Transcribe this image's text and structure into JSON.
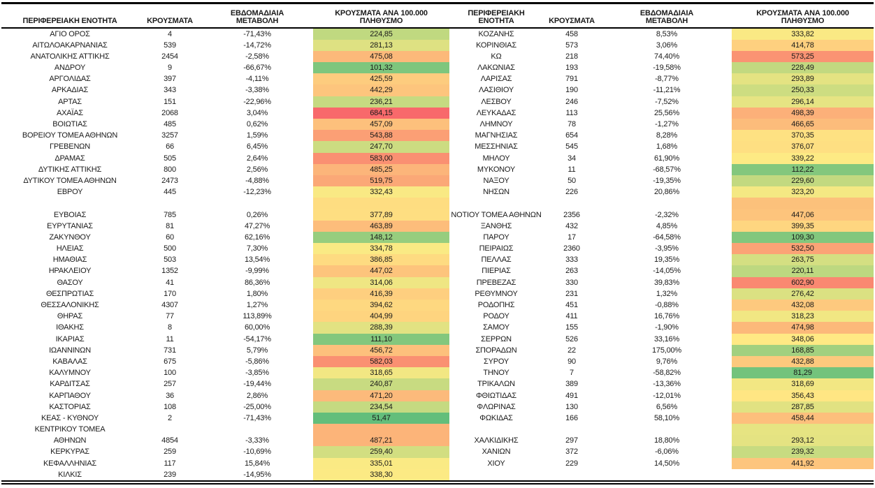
{
  "chart_data": {
    "type": "table",
    "title": "",
    "decimal_separator": ",",
    "color_scale": {
      "description": "3-color scale on per-100k column: green low, yellow mid, red high",
      "min_value": 51.47,
      "mid_value": 343.64,
      "max_value": 684.15,
      "min_color": "#63BE7B",
      "mid_color": "#FFEB84",
      "max_color": "#F8696B"
    },
    "text_color": "#1a1a1a",
    "border_color": "#000000",
    "tables": [
      {
        "header_lines": [
          [
            "ΠΕΡΙΦΕΡΕΙΑΚΗ ΕΝΟΤΗΤΑ"
          ],
          [
            "ΚΡΟΥΣΜΑΤΑ"
          ],
          [
            "ΕΒΔΟΜΑΔΙΑΙΑ",
            "ΜΕΤΑΒΟΛΗ"
          ],
          [
            "ΚΡΟΥΣΜΑΤΑ ΑΝΑ 100.000",
            "ΠΛΗΘΥΣΜΟ"
          ]
        ],
        "rows": [
          {
            "region": "ΑΓΙΟ ΟΡΟΣ",
            "cases": "4",
            "change": "-71,43%",
            "per_100k": "224,85"
          },
          {
            "region": "ΑΙΤΩΛΟΑΚΑΡΝΑΝΙΑΣ",
            "cases": "539",
            "change": "-14,72%",
            "per_100k": "281,13"
          },
          {
            "region": "ΑΝΑΤΟΛΙΚΗΣ ΑΤΤΙΚΗΣ",
            "cases": "2454",
            "change": "-2,58%",
            "per_100k": "475,08"
          },
          {
            "region": "ΑΝΔΡΟΥ",
            "cases": "9",
            "change": "-66,67%",
            "per_100k": "101,32"
          },
          {
            "region": "ΑΡΓΟΛΙΔΑΣ",
            "cases": "397",
            "change": "-4,11%",
            "per_100k": "425,59"
          },
          {
            "region": "ΑΡΚΑΔΙΑΣ",
            "cases": "343",
            "change": "-3,38%",
            "per_100k": "442,29"
          },
          {
            "region": "ΑΡΤΑΣ",
            "cases": "151",
            "change": "-22,96%",
            "per_100k": "236,21"
          },
          {
            "region": "ΑΧΑΪΑΣ",
            "cases": "2068",
            "change": "3,04%",
            "per_100k": "684,15"
          },
          {
            "region": "ΒΟΙΩΤΙΑΣ",
            "cases": "485",
            "change": "0,62%",
            "per_100k": "457,09"
          },
          {
            "region": "ΒΟΡΕΙΟΥ ΤΟΜΕΑ ΑΘΗΝΩΝ",
            "cases": "3257",
            "change": "1,59%",
            "per_100k": "543,88"
          },
          {
            "region": "ΓΡΕΒΕΝΩΝ",
            "cases": "66",
            "change": "6,45%",
            "per_100k": "247,70"
          },
          {
            "region": "ΔΡΑΜΑΣ",
            "cases": "505",
            "change": "2,64%",
            "per_100k": "583,00"
          },
          {
            "region": "ΔΥΤΙΚΗΣ ΑΤΤΙΚΗΣ",
            "cases": "800",
            "change": "2,56%",
            "per_100k": "485,25"
          },
          {
            "region": "ΔΥΤΙΚΟΥ ΤΟΜΕΑ ΑΘΗΝΩΝ",
            "cases": "2473",
            "change": "-4,88%",
            "per_100k": "519,75"
          },
          {
            "region": "ΕΒΡΟΥ",
            "cases": "445",
            "change": "-12,23%",
            "per_100k": "332,43"
          },
          {
            "region": "",
            "cases": "",
            "change": "",
            "per_100k": "",
            "fill": "#FEDD81"
          },
          {
            "region": "ΕΥΒΟΙΑΣ",
            "cases": "785",
            "change": "0,26%",
            "per_100k": "377,89"
          },
          {
            "region": "ΕΥΡΥΤΑΝΙΑΣ",
            "cases": "81",
            "change": "47,27%",
            "per_100k": "463,89"
          },
          {
            "region": "ΖΑΚΥΝΘΟΥ",
            "cases": "60",
            "change": "62,16%",
            "per_100k": "148,12"
          },
          {
            "region": "ΗΛΕΙΑΣ",
            "cases": "500",
            "change": "7,30%",
            "per_100k": "334,78"
          },
          {
            "region": "ΗΜΑΘΙΑΣ",
            "cases": "503",
            "change": "13,54%",
            "per_100k": "386,85"
          },
          {
            "region": "ΗΡΑΚΛΕΙΟΥ",
            "cases": "1352",
            "change": "-9,99%",
            "per_100k": "447,02"
          },
          {
            "region": "ΘΑΣΟΥ",
            "cases": "41",
            "change": "86,36%",
            "per_100k": "314,06"
          },
          {
            "region": "ΘΕΣΠΡΩΤΙΑΣ",
            "cases": "170",
            "change": "1,80%",
            "per_100k": "416,39"
          },
          {
            "region": "ΘΕΣΣΑΛΟΝΙΚΗΣ",
            "cases": "4307",
            "change": "1,27%",
            "per_100k": "394,62"
          },
          {
            "region": "ΘΗΡΑΣ",
            "cases": "77",
            "change": "113,89%",
            "per_100k": "404,99"
          },
          {
            "region": "ΙΘΑΚΗΣ",
            "cases": "8",
            "change": "60,00%",
            "per_100k": "288,39"
          },
          {
            "region": "ΙΚΑΡΙΑΣ",
            "cases": "11",
            "change": "-54,17%",
            "per_100k": "111,10"
          },
          {
            "region": "ΙΩΑΝΝΙΝΩΝ",
            "cases": "731",
            "change": "5,79%",
            "per_100k": "456,72"
          },
          {
            "region": "ΚΑΒΑΛΑΣ",
            "cases": "675",
            "change": "-5,86%",
            "per_100k": "582,03"
          },
          {
            "region": "ΚΑΛΥΜΝΟΥ",
            "cases": "100",
            "change": "-3,85%",
            "per_100k": "318,65"
          },
          {
            "region": "ΚΑΡΔΙΤΣΑΣ",
            "cases": "257",
            "change": "-19,44%",
            "per_100k": "240,87"
          },
          {
            "region": "ΚΑΡΠΑΘΟΥ",
            "cases": "36",
            "change": "2,86%",
            "per_100k": "471,20"
          },
          {
            "region": "ΚΑΣΤΟΡΙΑΣ",
            "cases": "108",
            "change": "-25,00%",
            "per_100k": "234,54"
          },
          {
            "region": "ΚΕΑΣ - ΚΥΘΝΟΥ",
            "cases": "2",
            "change": "-71,43%",
            "per_100k": "51,47"
          },
          {
            "region": "ΚΕΝΤΡΙΚΟΥ ΤΟΜΕΑ",
            "cases": "",
            "change": "",
            "per_100k": "",
            "fill": "#FCB479"
          },
          {
            "region": "ΑΘΗΝΩΝ",
            "cases": "4854",
            "change": "-3,33%",
            "per_100k": "487,21"
          },
          {
            "region": "ΚΕΡΚΥΡΑΣ",
            "cases": "259",
            "change": "-10,69%",
            "per_100k": "259,40"
          },
          {
            "region": "ΚΕΦΑΛΛΗΝΙΑΣ",
            "cases": "117",
            "change": "15,84%",
            "per_100k": "335,01"
          },
          {
            "region": "ΚΙΛΚΙΣ",
            "cases": "239",
            "change": "-14,95%",
            "per_100k": "338,30"
          }
        ]
      },
      {
        "header_lines": [
          [
            "ΠΕΡΙΦΕΡΕΙΑΚΗ",
            "ΕΝΟΤΗΤΑ"
          ],
          [
            "ΚΡΟΥΣΜΑΤΑ"
          ],
          [
            "ΕΒΔΟΜΑΔΙΑΙΑ",
            "ΜΕΤΑΒΟΛΗ"
          ],
          [
            "ΚΡΟΥΣΜΑΤΑ ΑΝΑ 100.000",
            "ΠΛΗΘΥΣΜΟ"
          ]
        ],
        "rows": [
          {
            "region": "ΚΟΖΑΝΗΣ",
            "cases": "458",
            "change": "8,53%",
            "per_100k": "333,82"
          },
          {
            "region": "ΚΟΡΙΝΘΙΑΣ",
            "cases": "573",
            "change": "3,06%",
            "per_100k": "414,78"
          },
          {
            "region": "ΚΩ",
            "cases": "218",
            "change": "74,40%",
            "per_100k": "573,25"
          },
          {
            "region": "ΛΑΚΩΝΙΑΣ",
            "cases": "193",
            "change": "-19,58%",
            "per_100k": "228,49"
          },
          {
            "region": "ΛΑΡΙΣΑΣ",
            "cases": "791",
            "change": "-8,77%",
            "per_100k": "293,89"
          },
          {
            "region": "ΛΑΣΙΘΙΟΥ",
            "cases": "190",
            "change": "-11,21%",
            "per_100k": "250,33"
          },
          {
            "region": "ΛΕΣΒΟΥ",
            "cases": "246",
            "change": "-7,52%",
            "per_100k": "296,14"
          },
          {
            "region": "ΛΕΥΚΑΔΑΣ",
            "cases": "113",
            "change": "25,56%",
            "per_100k": "498,39"
          },
          {
            "region": "ΛΗΜΝΟΥ",
            "cases": "78",
            "change": "-1,27%",
            "per_100k": "466,65"
          },
          {
            "region": "ΜΑΓΝΗΣΙΑΣ",
            "cases": "654",
            "change": "8,28%",
            "per_100k": "370,35"
          },
          {
            "region": "ΜΕΣΣΗΝΙΑΣ",
            "cases": "545",
            "change": "1,68%",
            "per_100k": "376,07"
          },
          {
            "region": "ΜΗΛΟΥ",
            "cases": "34",
            "change": "61,90%",
            "per_100k": "339,22"
          },
          {
            "region": "ΜΥΚΟΝΟΥ",
            "cases": "11",
            "change": "-68,57%",
            "per_100k": "112,22"
          },
          {
            "region": "ΝΑΞΟΥ",
            "cases": "50",
            "change": "-19,35%",
            "per_100k": "229,60"
          },
          {
            "region": "ΝΗΣΩΝ",
            "cases": "226",
            "change": "20,86%",
            "per_100k": "323,20"
          },
          {
            "region": "",
            "cases": "",
            "change": "",
            "per_100k": "",
            "fill": "#FCC17B"
          },
          {
            "region": "ΝΟΤΙΟΥ ΤΟΜΕΑ ΑΘΗΝΩΝ",
            "cases": "2356",
            "change": "-2,32%",
            "per_100k": "447,06"
          },
          {
            "region": "ΞΑΝΘΗΣ",
            "cases": "432",
            "change": "4,85%",
            "per_100k": "399,35"
          },
          {
            "region": "ΠΑΡΟΥ",
            "cases": "17",
            "change": "-64,58%",
            "per_100k": "109,30"
          },
          {
            "region": "ΠΕΙΡΑΙΩΣ",
            "cases": "2360",
            "change": "-3,95%",
            "per_100k": "532,50"
          },
          {
            "region": "ΠΕΛΛΑΣ",
            "cases": "333",
            "change": "19,35%",
            "per_100k": "263,75"
          },
          {
            "region": "ΠΙΕΡΙΑΣ",
            "cases": "263",
            "change": "-14,05%",
            "per_100k": "220,11"
          },
          {
            "region": "ΠΡΕΒΕΖΑΣ",
            "cases": "330",
            "change": "39,83%",
            "per_100k": "602,90"
          },
          {
            "region": "ΡΕΘΥΜΝΟΥ",
            "cases": "231",
            "change": "1,32%",
            "per_100k": "276,42"
          },
          {
            "region": "ΡΟΔΟΠΗΣ",
            "cases": "451",
            "change": "-0,88%",
            "per_100k": "432,08"
          },
          {
            "region": "ΡΟΔΟΥ",
            "cases": "411",
            "change": "16,76%",
            "per_100k": "318,23"
          },
          {
            "region": "ΣΑΜΟΥ",
            "cases": "155",
            "change": "-1,90%",
            "per_100k": "474,98"
          },
          {
            "region": "ΣΕΡΡΩΝ",
            "cases": "526",
            "change": "33,16%",
            "per_100k": "348,06"
          },
          {
            "region": "ΣΠΟΡΑΔΩΝ",
            "cases": "22",
            "change": "175,00%",
            "per_100k": "168,85"
          },
          {
            "region": "ΣΥΡΟΥ",
            "cases": "90",
            "change": "9,76%",
            "per_100k": "432,88"
          },
          {
            "region": "ΤΗΝΟΥ",
            "cases": "7",
            "change": "-58,82%",
            "per_100k": "81,29"
          },
          {
            "region": "ΤΡΙΚΑΛΩΝ",
            "cases": "389",
            "change": "-13,36%",
            "per_100k": "318,69"
          },
          {
            "region": "ΦΘΙΩΤΙΔΑΣ",
            "cases": "491",
            "change": "-12,01%",
            "per_100k": "356,43"
          },
          {
            "region": "ΦΛΩΡΙΝΑΣ",
            "cases": "130",
            "change": "6,56%",
            "per_100k": "287,85"
          },
          {
            "region": "ΦΩΚΙΔΑΣ",
            "cases": "166",
            "change": "58,10%",
            "per_100k": "458,44"
          },
          {
            "region": "",
            "cases": "",
            "change": "",
            "per_100k": "",
            "fill": "#E6E482"
          },
          {
            "region": "ΧΑΛΚΙΔΙΚΗΣ",
            "cases": "297",
            "change": "18,80%",
            "per_100k": "293,12"
          },
          {
            "region": "ΧΑΝΙΩΝ",
            "cases": "372",
            "change": "-6,06%",
            "per_100k": "239,32"
          },
          {
            "region": "ΧΙΟΥ",
            "cases": "229",
            "change": "14,50%",
            "per_100k": "441,92"
          },
          {
            "region": "",
            "cases": "",
            "change": "",
            "per_100k": ""
          }
        ]
      }
    ]
  }
}
